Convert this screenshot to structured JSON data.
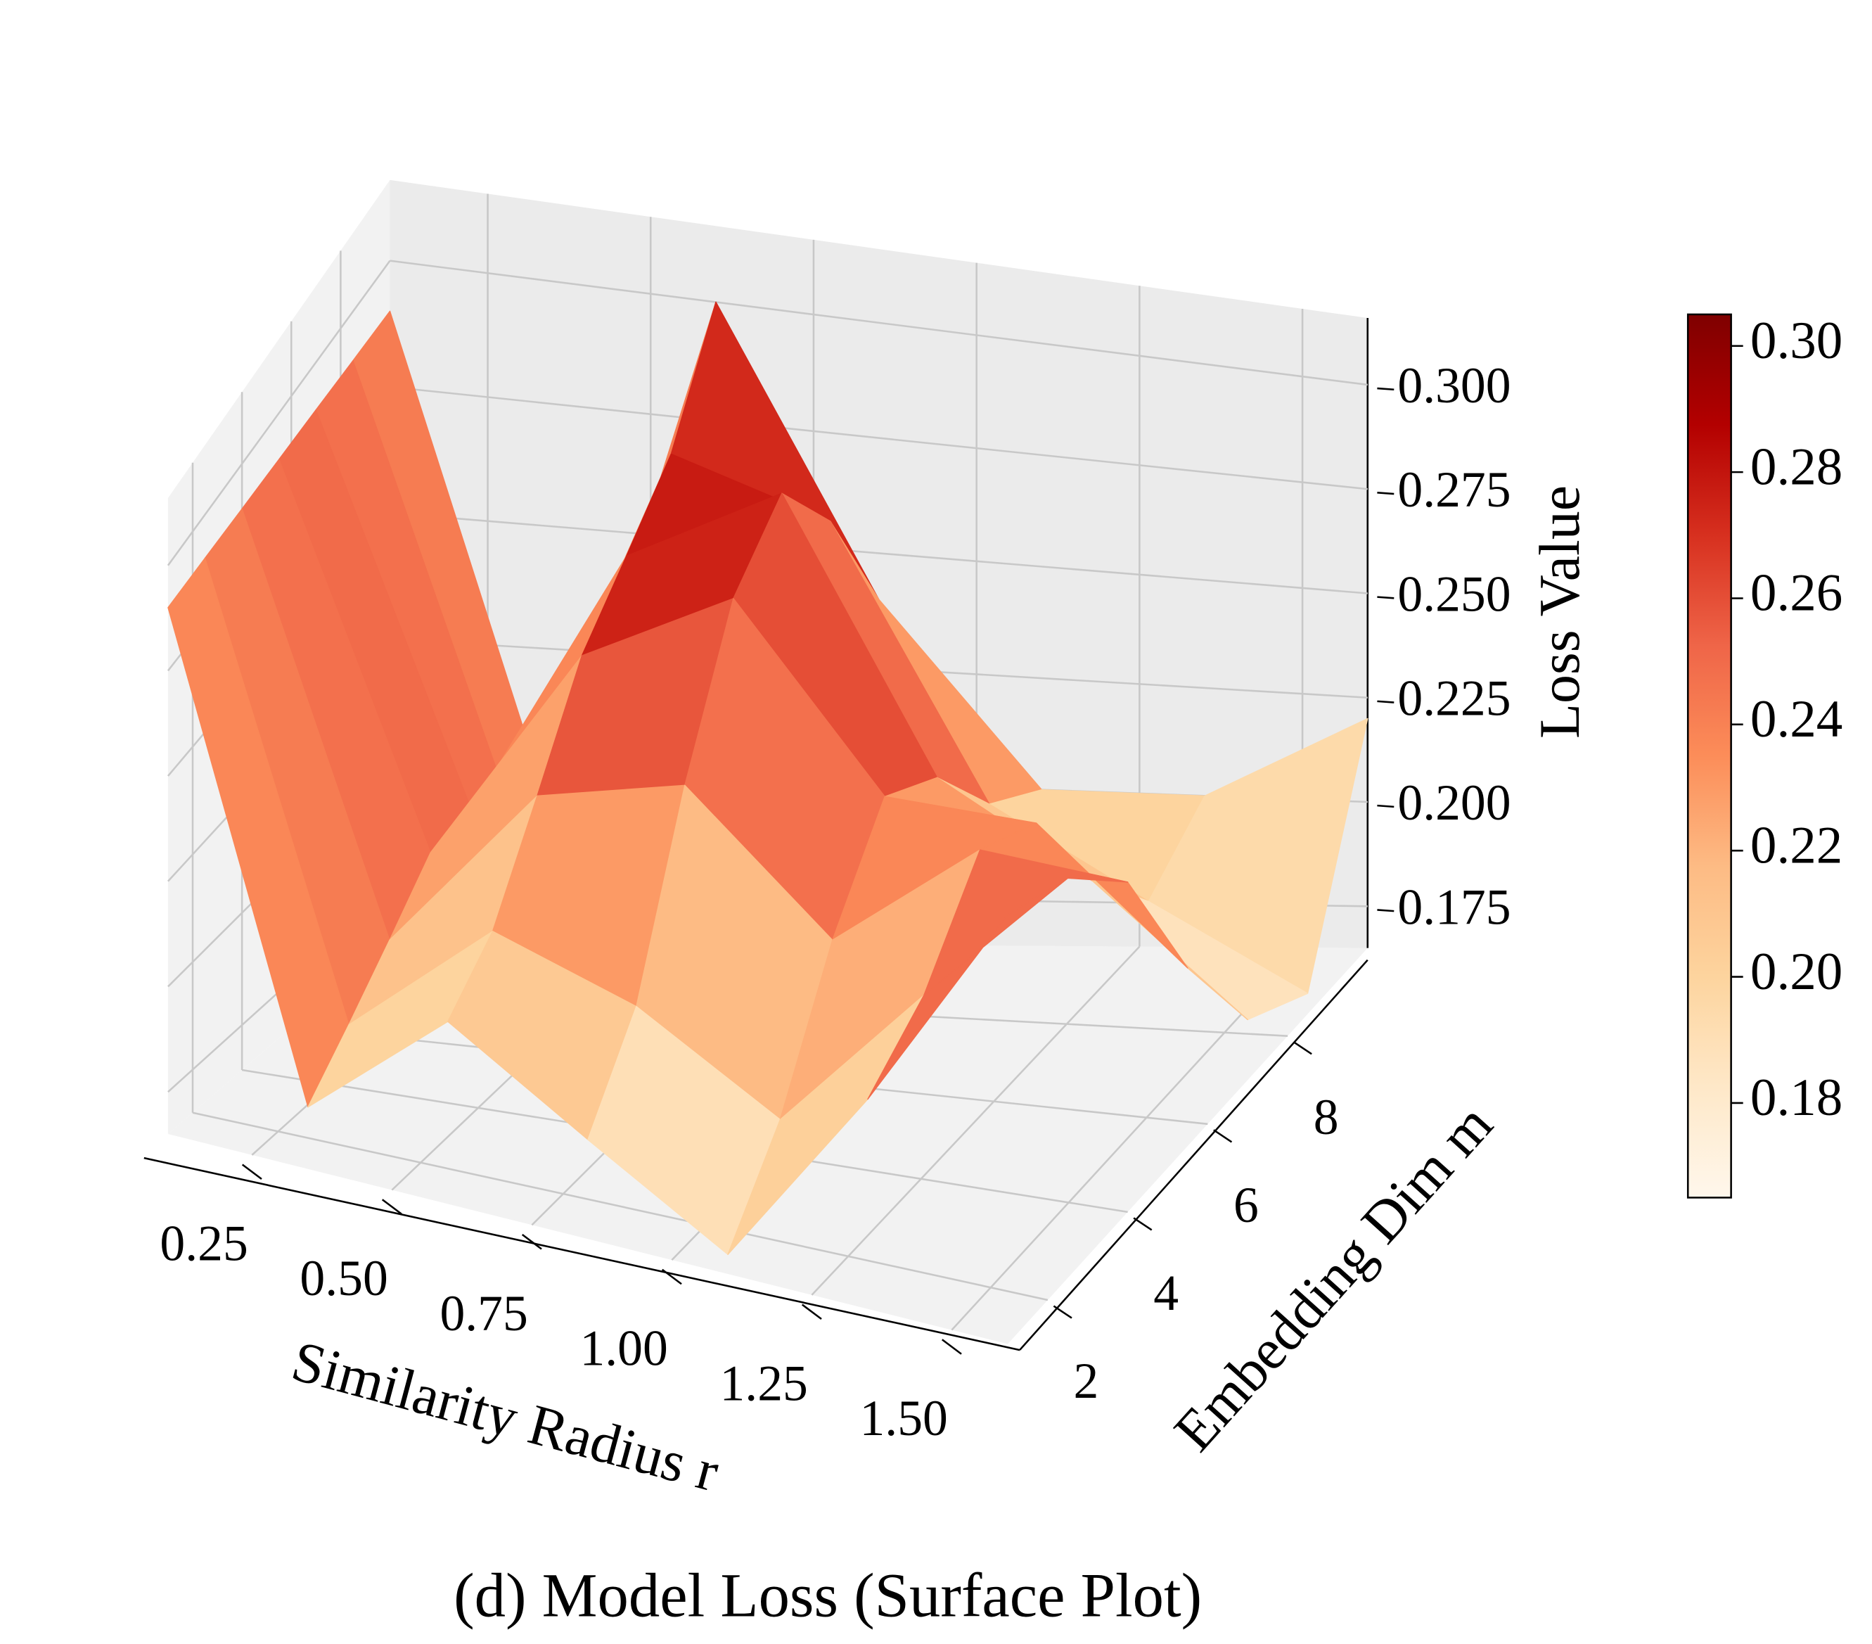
{
  "chart_data": {
    "type": "surface",
    "title": "(d) Model Loss (Surface Plot)",
    "xlabel": "Similarity Radius r",
    "ylabel": "Embedding Dim m",
    "zlabel": "Loss Value",
    "x": [
      0.1,
      0.35,
      0.6,
      0.85,
      1.1,
      1.35,
      1.6
    ],
    "y": [
      1,
      2.5,
      4,
      5.5,
      7,
      8.5,
      10
    ],
    "z": [
      [
        0.29,
        0.18,
        0.21,
        0.19,
        0.17,
        0.22,
        0.28
      ],
      [
        0.29,
        0.19,
        0.22,
        0.21,
        0.19,
        0.23,
        0.27
      ],
      [
        0.29,
        0.2,
        0.24,
        0.25,
        0.22,
        0.25,
        0.25
      ],
      [
        0.29,
        0.21,
        0.26,
        0.28,
        0.24,
        0.24,
        0.21
      ],
      [
        0.29,
        0.21,
        0.27,
        0.29,
        0.23,
        0.21,
        0.18
      ],
      [
        0.29,
        0.2,
        0.28,
        0.27,
        0.21,
        0.19,
        0.17
      ],
      [
        0.29,
        0.19,
        0.3,
        0.24,
        0.2,
        0.2,
        0.22
      ]
    ],
    "xlim": [
      0.1,
      1.6
    ],
    "ylim": [
      1,
      10
    ],
    "zlim": [
      0.165,
      0.316
    ],
    "xticks": [
      0.25,
      {
        "value": 0.5,
        "label": "0.50"
      },
      0.75,
      {
        "value": 1,
        "label": "1.00"
      },
      1.25,
      {
        "value": 1.5,
        "label": "1.50"
      }
    ],
    "yticks": [
      2,
      4,
      6,
      8
    ],
    "zticks": [
      0.175,
      {
        "value": 0.2,
        "label": "0.200"
      },
      0.225,
      {
        "value": 0.25,
        "label": "0.250"
      },
      0.275,
      {
        "value": 0.3,
        "label": "0.300"
      }
    ],
    "colormap": [
      "#fff7ec",
      "#fee8c8",
      "#fdd49e",
      "#fdbb84",
      "#fc8d59",
      "#ef6548",
      "#d7301f",
      "#b30000",
      "#7f0000"
    ],
    "clim": [
      0.165,
      0.305
    ],
    "colorbar_ticks": [
      0.18,
      {
        "value": 0.2,
        "label": "0.20"
      },
      0.22,
      0.24,
      0.26,
      0.28,
      {
        "value": 0.3,
        "label": "0.30"
      }
    ],
    "grid": true
  }
}
